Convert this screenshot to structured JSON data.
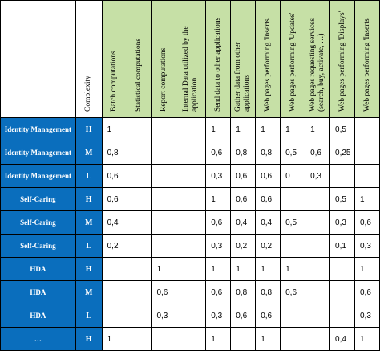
{
  "complexity_header": "Complexity",
  "columns": [
    "Batch computations",
    "Statistical computations",
    "Report computations",
    "Internal Data utilized by the application",
    "Send data to other applications",
    "Gather data from other applications",
    "Web pages performing 'Inserts'",
    "Web pages performing 'Updates'",
    "Web pages requesting services (search, buy, activate, …)",
    "Web pages performing 'Displays'",
    "Web pages performing 'Inserts'"
  ],
  "rows": [
    {
      "name": "Identity Management",
      "complexity": "H",
      "values": [
        "1",
        "",
        "",
        "",
        "1",
        "1",
        "1",
        "1",
        "1",
        "0,5",
        ""
      ]
    },
    {
      "name": "Identity Management",
      "complexity": "M",
      "values": [
        "0,8",
        "",
        "",
        "",
        "0,6",
        "0,8",
        "0,8",
        "0,5",
        "0,6",
        "0,25",
        ""
      ]
    },
    {
      "name": "Identity Management",
      "complexity": "L",
      "values": [
        "0,6",
        "",
        "",
        "",
        "0,3",
        "0,6",
        "0,6",
        "0",
        "0,3",
        "",
        ""
      ]
    },
    {
      "name": "Self-Caring",
      "complexity": "H",
      "values": [
        "0,6",
        "",
        "",
        "",
        "1",
        "0,6",
        "0,6",
        "",
        "",
        "0,5",
        "1"
      ]
    },
    {
      "name": "Self-Caring",
      "complexity": "M",
      "values": [
        "0,4",
        "",
        "",
        "",
        "0,6",
        "0,4",
        "0,4",
        "0,5",
        "",
        "0,3",
        "0,6"
      ]
    },
    {
      "name": "Self-Caring",
      "complexity": "L",
      "values": [
        "0,2",
        "",
        "",
        "",
        "0,3",
        "0,2",
        "0,2",
        "",
        "",
        "0,1",
        "0,3"
      ]
    },
    {
      "name": "HDA",
      "complexity": "H",
      "values": [
        "",
        "",
        "1",
        "",
        "1",
        "1",
        "1",
        "1",
        "",
        "",
        "1"
      ]
    },
    {
      "name": "HDA",
      "complexity": "M",
      "values": [
        "",
        "",
        "0,6",
        "",
        "0,6",
        "0,8",
        "0,8",
        "0,6",
        "",
        "",
        "0,6"
      ]
    },
    {
      "name": "HDA",
      "complexity": "L",
      "values": [
        "",
        "",
        "0,3",
        "",
        "0,3",
        "0,6",
        "0,6",
        "",
        "",
        "",
        "0,3"
      ]
    },
    {
      "name": "…",
      "complexity": "H",
      "values": [
        "1",
        "",
        "",
        "",
        "1",
        "",
        "1",
        "",
        "",
        "0,4",
        "1"
      ]
    }
  ],
  "colors": {
    "row_header_bg": "#0a6ebd",
    "column_header_bg": "#c6e0a6"
  }
}
